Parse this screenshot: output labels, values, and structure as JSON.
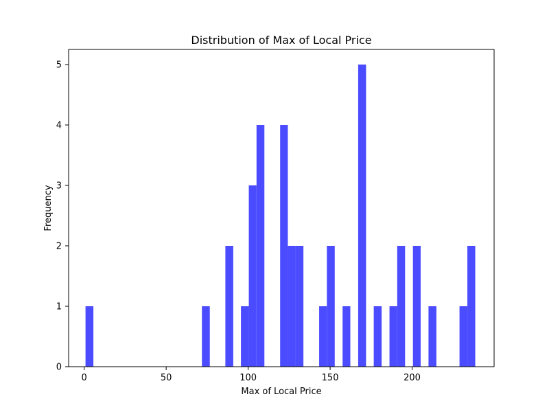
{
  "chart_data": {
    "type": "bar",
    "title": "Distribution of Max of Local Price",
    "xlabel": "Max of Local Price",
    "ylabel": "Frequency",
    "xlim": [
      -9.5,
      250
    ],
    "ylim": [
      0,
      5.25
    ],
    "x_ticks": [
      0,
      50,
      100,
      150,
      200
    ],
    "y_ticks": [
      0,
      1,
      2,
      3,
      4,
      5
    ],
    "bar_color": "#4b4bff",
    "grid": false,
    "bins": [
      {
        "start": 0.8,
        "end": 5.6,
        "count": 1
      },
      {
        "start": 71.8,
        "end": 76.6,
        "count": 1
      },
      {
        "start": 86.1,
        "end": 90.9,
        "count": 2
      },
      {
        "start": 95.6,
        "end": 100.4,
        "count": 1
      },
      {
        "start": 100.4,
        "end": 105.1,
        "count": 3
      },
      {
        "start": 105.1,
        "end": 109.9,
        "count": 4
      },
      {
        "start": 119.5,
        "end": 124.2,
        "count": 4
      },
      {
        "start": 124.2,
        "end": 129.0,
        "count": 2
      },
      {
        "start": 129.0,
        "end": 133.7,
        "count": 2
      },
      {
        "start": 143.3,
        "end": 148.0,
        "count": 1
      },
      {
        "start": 148.0,
        "end": 152.8,
        "count": 2
      },
      {
        "start": 157.6,
        "end": 162.3,
        "count": 1
      },
      {
        "start": 167.1,
        "end": 171.9,
        "count": 5
      },
      {
        "start": 176.6,
        "end": 181.4,
        "count": 1
      },
      {
        "start": 186.2,
        "end": 190.9,
        "count": 1
      },
      {
        "start": 190.9,
        "end": 195.7,
        "count": 2
      },
      {
        "start": 200.5,
        "end": 205.2,
        "count": 2
      },
      {
        "start": 210.0,
        "end": 214.8,
        "count": 1
      },
      {
        "start": 228.9,
        "end": 233.7,
        "count": 1
      },
      {
        "start": 233.7,
        "end": 238.5,
        "count": 2
      }
    ]
  }
}
